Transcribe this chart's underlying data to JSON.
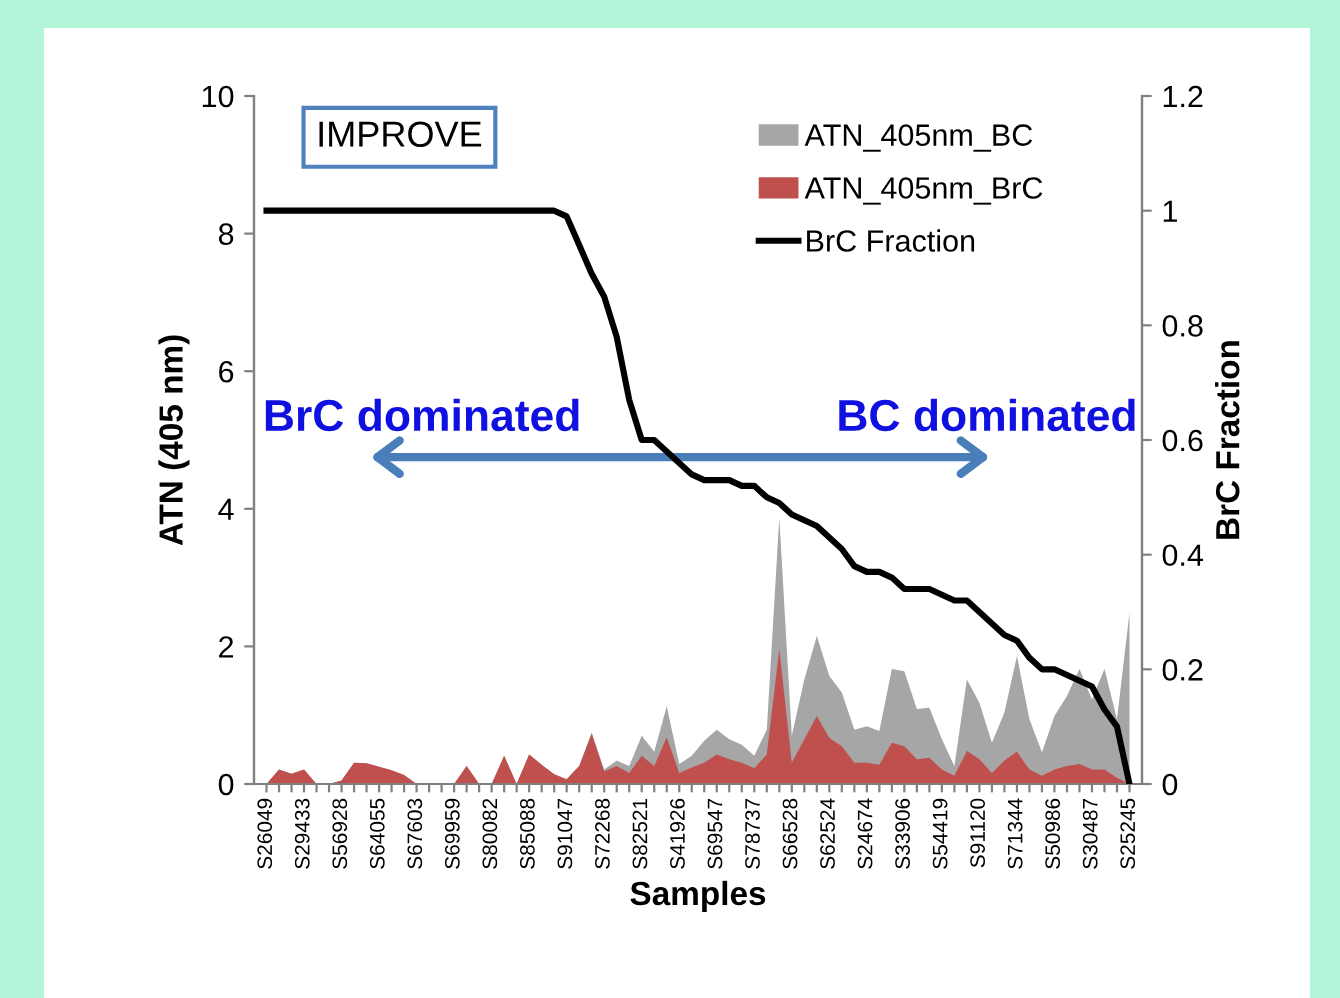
{
  "chart_data": {
    "type": "area",
    "categories": [
      "S26049",
      null,
      null,
      "S29433",
      null,
      null,
      "S56928",
      null,
      null,
      "S64055",
      null,
      null,
      "S67603",
      null,
      null,
      "S69959",
      null,
      null,
      "S80082",
      null,
      null,
      "S85088",
      null,
      null,
      "S91047",
      null,
      null,
      "S72268",
      null,
      null,
      "S82521",
      null,
      null,
      "S41926",
      null,
      null,
      "S69547",
      null,
      null,
      "S78737",
      null,
      null,
      "S66528",
      null,
      null,
      "S62524",
      null,
      null,
      "S24674",
      null,
      null,
      "S33906",
      null,
      null,
      "S54419",
      null,
      null,
      "S91120",
      null,
      null,
      "S71344",
      null,
      null,
      "S50986",
      null,
      null,
      "S30487",
      null,
      null,
      "S25245"
    ],
    "series": [
      {
        "name": "ATN_405nm_BC",
        "color": "#a6a6a6",
        "values": [
          0,
          0.21,
          0.15,
          0.21,
          0,
          0,
          0.05,
          0.31,
          0.3,
          0.25,
          0.2,
          0.13,
          0,
          0,
          0,
          0,
          0.26,
          0,
          0,
          0.41,
          0,
          0.43,
          0.28,
          0.14,
          0.07,
          0.26,
          0.75,
          0.21,
          0.34,
          0.26,
          0.7,
          0.47,
          1.13,
          0.29,
          0.41,
          0.63,
          0.79,
          0.65,
          0.57,
          0.41,
          0.79,
          3.87,
          0.7,
          1.52,
          2.15,
          1.57,
          1.33,
          0.79,
          0.84,
          0.77,
          1.67,
          1.64,
          1.09,
          1.11,
          0.65,
          0.26,
          1.52,
          1.18,
          0.6,
          1.04,
          1.86,
          0.94,
          0.46,
          0.99,
          1.28,
          1.67,
          1.23,
          1.67,
          0.94,
          2.49
        ]
      },
      {
        "name": "ATN_405nm_BrC",
        "color": "#c0504d",
        "values": [
          0,
          0.21,
          0.15,
          0.21,
          0,
          0,
          0.05,
          0.31,
          0.3,
          0.25,
          0.2,
          0.13,
          0,
          0,
          0,
          0,
          0.26,
          0,
          0,
          0.41,
          0,
          0.43,
          0.28,
          0.14,
          0.07,
          0.26,
          0.73,
          0.18,
          0.26,
          0.16,
          0.41,
          0.26,
          0.68,
          0.16,
          0.24,
          0.31,
          0.43,
          0.36,
          0.31,
          0.23,
          0.43,
          1.96,
          0.31,
          0.65,
          0.99,
          0.67,
          0.55,
          0.31,
          0.31,
          0.28,
          0.6,
          0.55,
          0.36,
          0.38,
          0.21,
          0.12,
          0.48,
          0.36,
          0.16,
          0.34,
          0.47,
          0.21,
          0.12,
          0.21,
          0.26,
          0.29,
          0.21,
          0.21,
          0.09,
          0
        ]
      },
      {
        "name": "BrC Fraction",
        "type": "line",
        "axis": "y2",
        "color": "#000000",
        "values": [
          1,
          1,
          1,
          1,
          1,
          1,
          1,
          1,
          1,
          1,
          1,
          1,
          1,
          1,
          1,
          1,
          1,
          1,
          1,
          1,
          1,
          1,
          1,
          1,
          0.99,
          0.94,
          0.89,
          0.85,
          0.78,
          0.67,
          0.6,
          0.6,
          0.58,
          0.56,
          0.54,
          0.53,
          0.53,
          0.53,
          0.52,
          0.52,
          0.5,
          0.49,
          0.47,
          0.46,
          0.45,
          0.43,
          0.41,
          0.38,
          0.37,
          0.37,
          0.36,
          0.34,
          0.34,
          0.34,
          0.33,
          0.32,
          0.32,
          0.3,
          0.28,
          0.26,
          0.25,
          0.22,
          0.2,
          0.2,
          0.19,
          0.18,
          0.17,
          0.13,
          0.1,
          0
        ]
      }
    ],
    "xlabel": "Samples",
    "ylabel": "ATN (405 nm)",
    "y2label": "BrC Fraction",
    "ylim": [
      0,
      10
    ],
    "yticks": [
      0,
      2,
      4,
      6,
      8,
      10
    ],
    "y2lim": [
      0,
      1.2
    ],
    "y2ticks": [
      0,
      0.2,
      0.4,
      0.6,
      0.8,
      1,
      1.2
    ],
    "annotations": [
      "IMPROVE",
      "BrC dominated",
      "BC dominated"
    ],
    "legend": "top right",
    "grid": false
  }
}
